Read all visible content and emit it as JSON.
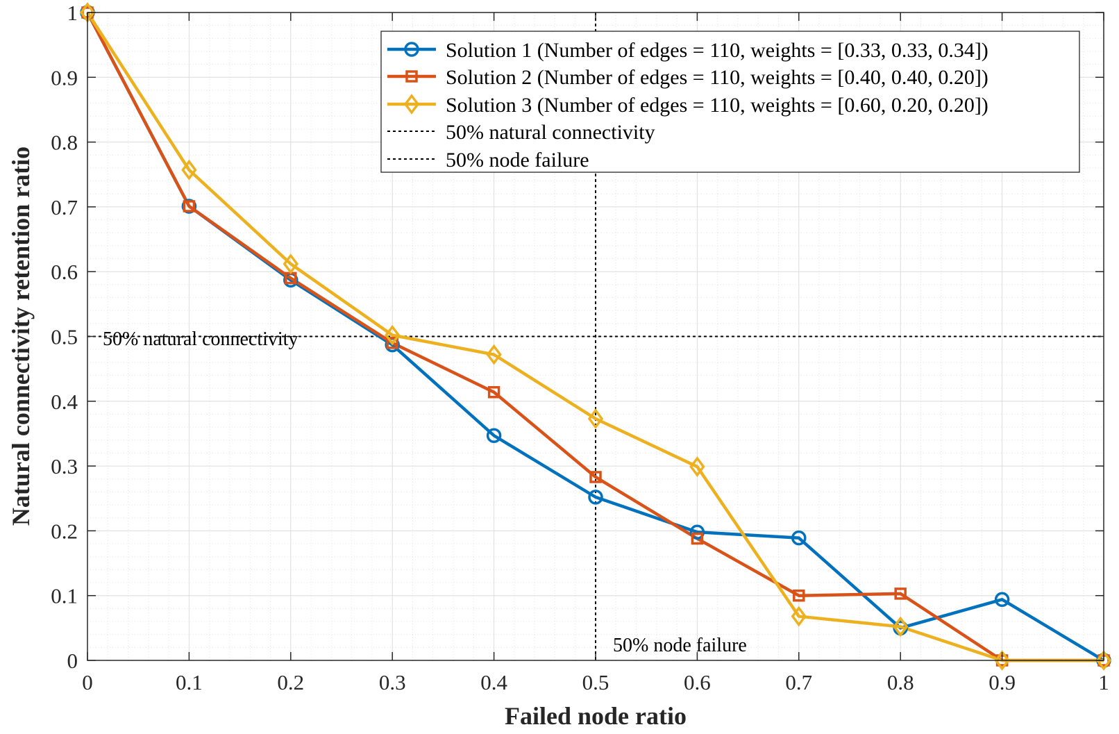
{
  "chart_data": {
    "type": "line",
    "title": "",
    "xlabel": "Failed node ratio",
    "ylabel": "Natural connectivity retention ratio",
    "xlim": [
      0,
      1
    ],
    "ylim": [
      0,
      1
    ],
    "grid": true,
    "minor_grid": true,
    "xticks": [
      "0",
      "0.1",
      "0.2",
      "0.3",
      "0.4",
      "0.5",
      "0.6",
      "0.7",
      "0.8",
      "0.9",
      "1"
    ],
    "yticks": [
      "0",
      "0.1",
      "0.2",
      "0.3",
      "0.4",
      "0.5",
      "0.6",
      "0.7",
      "0.8",
      "0.9",
      "1"
    ],
    "x": [
      0,
      0.1,
      0.2,
      0.3,
      0.4,
      0.5,
      0.6,
      0.7,
      0.8,
      0.9,
      1.0
    ],
    "series": [
      {
        "name": "Solution 1 (Number of edges = 110, weights = [0.33, 0.33, 0.34])",
        "marker": "circle",
        "color": "#0072BD",
        "values": [
          1.0,
          0.701,
          0.587,
          0.487,
          0.347,
          0.252,
          0.198,
          0.189,
          0.05,
          0.094,
          0.0
        ]
      },
      {
        "name": "Solution 2 (Number of edges = 110, weights = [0.40, 0.40, 0.20])",
        "marker": "square",
        "color": "#D95319",
        "values": [
          1.0,
          0.701,
          0.59,
          0.49,
          0.414,
          0.283,
          0.188,
          0.1,
          0.103,
          0.0,
          0.0
        ]
      },
      {
        "name": "Solution 3 (Number of edges = 110, weights = [0.60, 0.20, 0.20])",
        "marker": "diamond",
        "color": "#EDB120",
        "values": [
          1.0,
          0.757,
          0.612,
          0.502,
          0.472,
          0.373,
          0.299,
          0.068,
          0.052,
          0.0,
          0.0
        ]
      }
    ],
    "reference_lines": [
      {
        "name": "50% natural connectivity",
        "orientation": "horizontal",
        "value": 0.5,
        "label": "50% natural connectivity",
        "style": "dotted",
        "color": "#000000"
      },
      {
        "name": "50% node failure",
        "orientation": "vertical",
        "value": 0.5,
        "label": "50% node failure",
        "style": "dotted",
        "color": "#000000"
      }
    ],
    "legend": {
      "location": "top-right",
      "entries": [
        "Solution 1 (Number of edges = 110, weights = [0.33, 0.33, 0.34])",
        "Solution 2 (Number of edges = 110, weights = [0.40, 0.40, 0.20])",
        "Solution 3 (Number of edges = 110, weights = [0.60, 0.20, 0.20])",
        "50% natural connectivity",
        "50% node failure"
      ]
    }
  }
}
